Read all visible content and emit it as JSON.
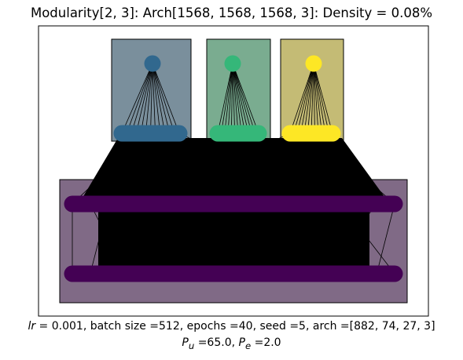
{
  "figure": {
    "title": "Modularity[2, 3]: Arch[1568, 1568, 1568, 3]: Density = 0.08%",
    "caption": {
      "lr_label": "lr",
      "line1_rest": " =  0.001, batch size =512, epochs =40, seed =5, arch =[882, 74, 27, 3]",
      "pu_label": "P",
      "pu_sub": "u",
      "pu_value": " =65.0, ",
      "pe_label": "P",
      "pe_sub": "e",
      "pe_value": " =2.0"
    }
  },
  "chart_data": {
    "type": "network-diagram",
    "layers": [
      {
        "name": "input-layer-bottom",
        "color": "#440154",
        "node_count": 1568
      },
      {
        "name": "hidden-layer-1",
        "color": "#440154",
        "node_count": 1568
      },
      {
        "name": "hidden-layer-2-modules",
        "modules": [
          {
            "name": "module-1",
            "color": "#31688e",
            "node_count": 14
          },
          {
            "name": "module-2",
            "color": "#35b779",
            "node_count": 14
          },
          {
            "name": "module-3",
            "color": "#fde725",
            "node_count": 14
          }
        ]
      },
      {
        "name": "output-layer",
        "modules": [
          {
            "name": "output-1",
            "color": "#31688e",
            "node_count": 1
          },
          {
            "name": "output-2",
            "color": "#35b779",
            "node_count": 1
          },
          {
            "name": "output-3",
            "color": "#fde725",
            "node_count": 1
          }
        ]
      }
    ],
    "module_box_colors": [
      "#7a8f9c",
      "#7aac90",
      "#c4bb75"
    ],
    "bottom_box_color": "#806a86",
    "edge_color": "#000000"
  }
}
